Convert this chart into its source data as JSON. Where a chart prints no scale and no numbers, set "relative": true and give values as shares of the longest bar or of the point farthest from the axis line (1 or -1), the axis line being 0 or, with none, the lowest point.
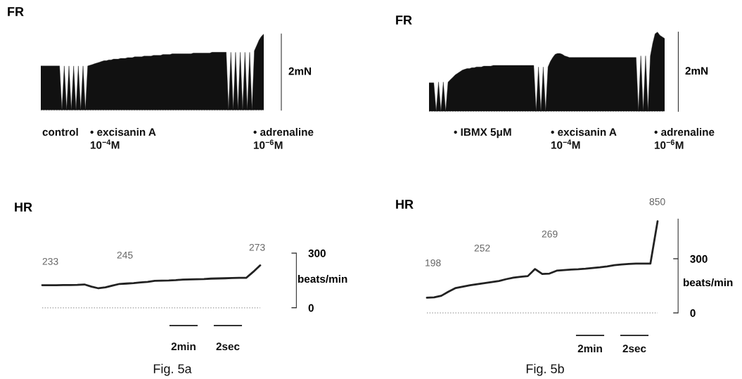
{
  "chart_data": [
    {
      "type": "area",
      "title": "FR",
      "ylabel": "2mN",
      "relative": true,
      "tick_labels": false,
      "categories": [
        null,
        null,
        null,
        null,
        null,
        null,
        null,
        null,
        null,
        null,
        null,
        null,
        null,
        null,
        null,
        null,
        null,
        null,
        null,
        null,
        null,
        null,
        null,
        null,
        null,
        null,
        null,
        null,
        null,
        null,
        null,
        null,
        null,
        null,
        null,
        null,
        null,
        null,
        null,
        null,
        null,
        null,
        null,
        null,
        null,
        null,
        null,
        null,
        null,
        null,
        null,
        null,
        null,
        null,
        null,
        null,
        null,
        null,
        null,
        null,
        null,
        null,
        null,
        null,
        null,
        null,
        null,
        null,
        null,
        null,
        null,
        null,
        null,
        null,
        null,
        null,
        null,
        null,
        null,
        null,
        null,
        null,
        null,
        null,
        null,
        null,
        null,
        null,
        null,
        null,
        null,
        null,
        null,
        null,
        null,
        null
      ],
      "series": [
        {
          "color": "#111111",
          "values": [
            0.58,
            0.58,
            0.58,
            0.58,
            0.58,
            0.58,
            0.58,
            0.58,
            0.58,
            0,
            0.58,
            0,
            0.58,
            0,
            0.58,
            0,
            0.58,
            0,
            0.58,
            0,
            0.58,
            0.59,
            0.6,
            0.61,
            0.62,
            0.63,
            0.64,
            0.65,
            0.65,
            0.66,
            0.66,
            0.67,
            0.67,
            0.67,
            0.68,
            0.68,
            0.68,
            0.69,
            0.69,
            0.69,
            0.7,
            0.7,
            0.7,
            0.7,
            0.71,
            0.71,
            0.71,
            0.71,
            0.72,
            0.72,
            0.72,
            0.72,
            0.73,
            0.73,
            0.73,
            0.73,
            0.74,
            0.74,
            0.74,
            0.74,
            0.74,
            0.74,
            0.74,
            0.74,
            0.74,
            0.75,
            0.75,
            0.75,
            0.75,
            0.75,
            0.75,
            0.75,
            0.75,
            0.76,
            0.76,
            0.76,
            0.76,
            0.76,
            0.76,
            0.76,
            0,
            0.76,
            0,
            0.76,
            0,
            0.76,
            0,
            0.76,
            0,
            0.76,
            0,
            0.78,
            0.85,
            0.92,
            0.97,
            1
          ]
        }
      ],
      "ref_lines": [
        {
          "axis": "y",
          "value": 0,
          "label": null,
          "color": "#aaaaaa",
          "line_style": "dotted"
        }
      ],
      "annotations": [
        "control",
        "• excisanin A\n10$^{−4}$M",
        "• adrenaline\n10$^{−6}$M"
      ]
    },
    {
      "type": "area",
      "title": "FR",
      "ylabel": "2mN",
      "relative": true,
      "tick_labels": false,
      "categories": [
        null,
        null,
        null,
        null,
        null,
        null,
        null,
        null,
        null,
        null,
        null,
        null,
        null,
        null,
        null,
        null,
        null,
        null,
        null,
        null,
        null,
        null,
        null,
        null,
        null,
        null,
        null,
        null,
        null,
        null,
        null,
        null,
        null,
        null,
        null,
        null,
        null,
        null,
        null,
        null,
        null,
        null,
        null,
        null,
        null,
        null,
        null,
        null,
        null,
        null,
        null,
        null,
        null,
        null,
        null,
        null,
        null,
        null,
        null,
        null,
        null,
        null,
        null,
        null,
        null,
        null,
        null,
        null,
        null,
        null,
        null,
        null,
        null,
        null,
        null,
        null,
        null,
        null,
        null,
        null,
        null,
        null,
        null,
        null,
        null,
        null,
        null,
        null,
        null,
        null,
        null,
        null,
        null,
        null,
        null,
        null,
        null,
        null,
        null,
        null
      ],
      "series": [
        {
          "color": "#111111",
          "values": [
            0.36,
            0.36,
            0.36,
            0,
            0.37,
            0,
            0.37,
            0,
            0.37,
            0.4,
            0.43,
            0.46,
            0.48,
            0.5,
            0.52,
            0.53,
            0.54,
            0.54,
            0.55,
            0.55,
            0.56,
            0.56,
            0.56,
            0.57,
            0.57,
            0.57,
            0.57,
            0.58,
            0.58,
            0.58,
            0.58,
            0.58,
            0.58,
            0.58,
            0.58,
            0.58,
            0.58,
            0.58,
            0.58,
            0.58,
            0.58,
            0.58,
            0.58,
            0.58,
            0.58,
            0,
            0.56,
            0,
            0.56,
            0,
            0.56,
            0.63,
            0.68,
            0.72,
            0.73,
            0.73,
            0.72,
            0.7,
            0.69,
            0.68,
            0.68,
            0.68,
            0.68,
            0.68,
            0.68,
            0.68,
            0.68,
            0.68,
            0.68,
            0.68,
            0.68,
            0.68,
            0.68,
            0.68,
            0.68,
            0.68,
            0.68,
            0.68,
            0.68,
            0.68,
            0.68,
            0.68,
            0.68,
            0.68,
            0.68,
            0.68,
            0.68,
            0.68,
            0,
            0.7,
            0,
            0.7,
            0,
            0.7,
            0.86,
            0.98,
            1,
            0.96,
            0.94,
            0.92
          ]
        }
      ],
      "ref_lines": [
        {
          "axis": "y",
          "value": 0,
          "label": null,
          "color": "#aaaaaa",
          "line_style": "dotted"
        }
      ],
      "annotations": [
        "• IBMX 5μM",
        "• excisanin A\n10$^{−4}$M",
        "• adrenaline\n10$^{−6}$M"
      ]
    },
    {
      "type": "line",
      "title": "HR",
      "ylabel": "beats/min",
      "tick_labels": "y",
      "ylim": [
        0,
        300
      ],
      "yticks": [
        0,
        300
      ],
      "categories": [
        null,
        null,
        null,
        null,
        null,
        null,
        null,
        null,
        null,
        null,
        null,
        null,
        null,
        null,
        null,
        null,
        null,
        null,
        null,
        null,
        null,
        null,
        null,
        null,
        null,
        null,
        null,
        null,
        null,
        null,
        null,
        null
      ],
      "series": [
        {
          "color": "#222222",
          "values": [
            124,
            124,
            124,
            125,
            125,
            126,
            128,
            116,
            107,
            112,
            122,
            131,
            133,
            135,
            139,
            142,
            148,
            149,
            150,
            152,
            155,
            156,
            157,
            158,
            160,
            161,
            162,
            163,
            164,
            164,
            197,
            233
          ]
        }
      ],
      "ref_lines": [
        {
          "axis": "y",
          "value": 0,
          "label": null,
          "color": "#aaaaaa",
          "line_style": "dotted"
        }
      ],
      "annotations": [
        "233",
        "245",
        "273",
        "2min",
        "2sec",
        "Fig. 5a"
      ]
    },
    {
      "type": "line",
      "title": "HR",
      "ylabel": "beats/min",
      "tick_labels": "y",
      "ylim": [
        0,
        520
      ],
      "yticks": [
        0,
        300
      ],
      "categories": [
        null,
        null,
        null,
        null,
        null,
        null,
        null,
        null,
        null,
        null,
        null,
        null,
        null,
        null,
        null,
        null,
        null,
        null,
        null,
        null,
        null,
        null,
        null,
        null,
        null,
        null,
        null,
        null,
        null,
        null,
        null,
        null,
        null
      ],
      "series": [
        {
          "color": "#222222",
          "values": [
            84,
            86,
            95,
            118,
            138,
            146,
            153,
            159,
            165,
            171,
            177,
            187,
            195,
            200,
            204,
            243,
            216,
            218,
            234,
            237,
            240,
            242,
            245,
            249,
            253,
            258,
            264,
            268,
            271,
            273,
            273,
            273,
            508
          ]
        }
      ],
      "ref_lines": [
        {
          "axis": "y",
          "value": 0,
          "label": null,
          "color": "#aaaaaa",
          "line_style": "dotted"
        }
      ],
      "annotations": [
        "198",
        "252",
        "269",
        "850",
        "2min",
        "2sec",
        "Fig. 5b"
      ]
    }
  ]
}
